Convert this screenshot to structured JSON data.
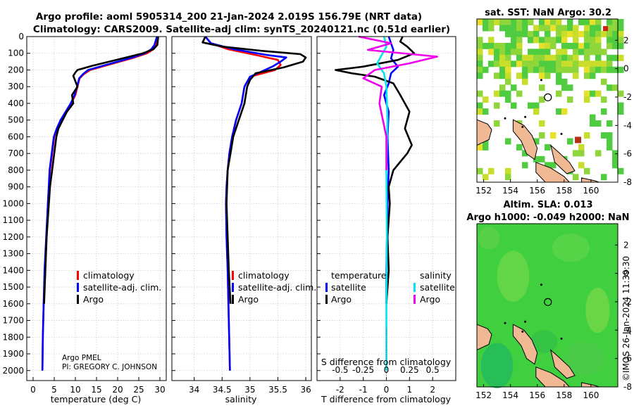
{
  "header": {
    "line1": "Argo profile: aoml 5905314_200 21-Jan-2024 2.019S 156.79E (NRT data)",
    "line2": "Climatology: CARS2009. Satellite-adj clim: synTS_20240121.nc (0.51d earlier)"
  },
  "colors": {
    "argo": "#000000",
    "climatology": "#ff0000",
    "satellite_adj": "#0000ff",
    "s_satellite": "#00e5ee",
    "s_argo": "#ee00ee"
  },
  "depth_axis": {
    "ticks": [
      0,
      100,
      200,
      300,
      400,
      500,
      600,
      700,
      800,
      900,
      1000,
      1100,
      1200,
      1300,
      1400,
      1500,
      1600,
      1700,
      1800,
      1900,
      2000
    ],
    "range": [
      0,
      2060
    ]
  },
  "chart_data": [
    {
      "type": "line",
      "name": "temperature-profile",
      "xlabel": "temperature (deg C)",
      "xlim": [
        -1.5,
        31.5
      ],
      "xticks": [
        0,
        5,
        10,
        15,
        20,
        25,
        30
      ],
      "ylim": [
        0,
        2060
      ],
      "legend": [
        "climatology",
        "satellite-adj. clim.",
        "Argo"
      ],
      "legend_position": "lower-right",
      "note_line1": "Argo PMEL",
      "note_line2": "PI: GREGORY C. JOHNSON",
      "series": [
        {
          "name": "climatology",
          "color": "#ff0000",
          "x": [
            29.5,
            29.3,
            29.0,
            28.5,
            27.0,
            24.0,
            20.5,
            17.0,
            13.5,
            12.0,
            11.0,
            10.5,
            10.0,
            9.0,
            7.8,
            6.5,
            5.7,
            5.0,
            4.5,
            4.0,
            3.5,
            3.2,
            2.8,
            2.5,
            2.3,
            2.2
          ],
          "y": [
            0,
            25,
            50,
            75,
            100,
            125,
            150,
            175,
            200,
            225,
            250,
            300,
            350,
            400,
            450,
            500,
            550,
            600,
            700,
            800,
            1000,
            1200,
            1400,
            1600,
            1800,
            2000
          ]
        },
        {
          "name": "satellite-adj. clim.",
          "color": "#0000ff",
          "x": [
            29.3,
            29.0,
            28.7,
            28.0,
            26.5,
            23.5,
            20.0,
            16.5,
            13.0,
            11.8,
            10.9,
            10.4,
            9.8,
            8.9,
            7.7,
            6.5,
            5.6,
            4.9,
            4.4,
            3.9,
            3.5,
            3.1,
            2.7,
            2.5,
            2.3,
            2.2
          ],
          "y": [
            0,
            25,
            50,
            75,
            100,
            125,
            150,
            175,
            200,
            225,
            250,
            300,
            350,
            400,
            450,
            500,
            550,
            600,
            700,
            800,
            1000,
            1200,
            1400,
            1600,
            1800,
            2000
          ]
        },
        {
          "name": "Argo",
          "color": "#000000",
          "x": [
            29.6,
            29.5,
            29.4,
            28.5,
            26.0,
            22.0,
            18.0,
            14.0,
            10.5,
            10.0,
            9.5,
            10.5,
            9.2,
            9.5,
            8.0,
            7.0,
            6.0,
            5.5,
            5.0,
            4.5,
            4.0,
            3.2,
            2.9,
            2.6
          ],
          "y": [
            0,
            25,
            50,
            75,
            100,
            125,
            150,
            175,
            200,
            215,
            235,
            300,
            350,
            400,
            450,
            500,
            550,
            600,
            700,
            800,
            900,
            1200,
            1400,
            1600
          ]
        }
      ]
    },
    {
      "type": "line",
      "name": "salinity-profile",
      "xlabel": "salinity",
      "xlim": [
        33.6,
        36.1
      ],
      "xticks": [
        34,
        34.5,
        35,
        35.5,
        36
      ],
      "ylim": [
        0,
        2060
      ],
      "legend": [
        "climatology",
        "satellite-adj. clim.",
        "Argo"
      ],
      "legend_position": "lower-right",
      "series": [
        {
          "name": "climatology",
          "color": "#ff0000",
          "x": [
            34.2,
            34.3,
            34.6,
            35.1,
            35.5,
            35.55,
            35.45,
            35.0,
            34.9,
            34.85,
            34.75,
            34.68,
            34.63,
            34.6,
            34.58,
            34.57,
            34.58,
            34.6,
            34.62,
            34.64
          ],
          "y": [
            0,
            40,
            75,
            110,
            140,
            170,
            200,
            240,
            300,
            400,
            500,
            600,
            700,
            800,
            900,
            1000,
            1200,
            1400,
            1700,
            2000
          ]
        },
        {
          "name": "satellite-adj. clim.",
          "color": "#0000ff",
          "x": [
            34.2,
            34.3,
            34.7,
            35.3,
            35.65,
            35.55,
            35.4,
            35.0,
            34.9,
            34.85,
            34.75,
            34.68,
            34.63,
            34.6,
            34.58,
            34.57,
            34.58,
            34.6,
            34.62,
            34.64
          ],
          "y": [
            0,
            40,
            75,
            110,
            125,
            150,
            180,
            240,
            300,
            400,
            500,
            600,
            700,
            800,
            900,
            1000,
            1200,
            1400,
            1700,
            2000
          ]
        },
        {
          "name": "Argo",
          "color": "#000000",
          "x": [
            34.2,
            34.15,
            34.5,
            35.2,
            35.9,
            36.0,
            35.95,
            35.6,
            35.1,
            35.0,
            34.95,
            34.9,
            34.8,
            34.7,
            34.65,
            34.6,
            34.58,
            34.6,
            34.62,
            34.65
          ],
          "y": [
            0,
            35,
            60,
            85,
            105,
            125,
            150,
            185,
            220,
            260,
            300,
            400,
            500,
            600,
            700,
            800,
            1000,
            1200,
            1400,
            1600
          ]
        }
      ]
    },
    {
      "type": "line",
      "name": "difference-profile",
      "xlabel": "T difference from climatology",
      "xlabel_top": "S difference from climatology",
      "xlim": [
        -3,
        3
      ],
      "xticks": [
        -2,
        -1,
        0,
        1,
        2
      ],
      "xticks_top": [
        -0.5,
        -0.25,
        0,
        0.25,
        0.5
      ],
      "ylim": [
        0,
        2060
      ],
      "legend_left_title": "temperature",
      "legend_right_title": "salinity",
      "legend_left": [
        "satellite",
        "Argo"
      ],
      "legend_right": [
        "satellite",
        "Argo"
      ],
      "series": [
        {
          "name": "T satellite",
          "color": "#0000ff",
          "x": [
            0.1,
            0.3,
            0.2,
            0.5,
            0.2,
            0.1,
            -0.1,
            0.1,
            0.05,
            0.1,
            0.05,
            0.0,
            0.0
          ],
          "y": [
            0,
            80,
            130,
            180,
            220,
            280,
            350,
            450,
            600,
            800,
            1000,
            1400,
            1600
          ]
        },
        {
          "name": "T Argo",
          "color": "#000000",
          "x": [
            0.7,
            0.6,
            0.9,
            1.2,
            0.5,
            -1.0,
            -2.2,
            -1.5,
            -0.5,
            0.3,
            0.6,
            1.0,
            0.8,
            1.1,
            0.9,
            0.6,
            0.3,
            0.1,
            0.15,
            0.05,
            0.1,
            0.0
          ],
          "y": [
            0,
            30,
            60,
            100,
            140,
            180,
            200,
            220,
            240,
            280,
            350,
            450,
            550,
            650,
            700,
            750,
            800,
            900,
            1000,
            1200,
            1400,
            1600
          ]
        },
        {
          "name": "S satellite",
          "color": "#00e5ee",
          "x": [
            -0.1,
            0.0,
            -0.2,
            -0.4,
            -0.1,
            0.0,
            0.05,
            0.0,
            0.02,
            0.0,
            0.0
          ],
          "y": [
            0,
            60,
            110,
            160,
            220,
            300,
            500,
            800,
            1200,
            1600,
            2000
          ]
        },
        {
          "name": "S Argo",
          "color": "#ee00ee",
          "x": [
            -1.2,
            0.2,
            -0.8,
            2.2,
            1.0,
            -0.5,
            -1.0,
            -0.2,
            -0.3,
            0.0,
            0.0
          ],
          "y": [
            0,
            40,
            80,
            120,
            160,
            200,
            250,
            300,
            400,
            600,
            800
          ]
        }
      ]
    },
    {
      "type": "heatmap",
      "name": "sat-sst-map",
      "title": "sat. SST: NaN Argo: 30.2",
      "x_range": [
        151.5,
        162
      ],
      "y_range": [
        -8,
        3.5
      ],
      "xticks": [
        152,
        154,
        156,
        158,
        160
      ],
      "yticks": [
        2,
        0,
        -2,
        -4,
        -6,
        -8
      ],
      "marker": {
        "lon": 156.79,
        "lat": -2.019
      }
    },
    {
      "type": "heatmap",
      "name": "altim-sla-map",
      "title": "Altim. SLA: 0.013",
      "subtitle": "Argo h1000: -0.049 h2000: NaN",
      "x_range": [
        151.5,
        162
      ],
      "y_range": [
        -8,
        3.5
      ],
      "xticks": [
        152,
        154,
        156,
        158,
        160
      ],
      "yticks": [
        2,
        0,
        -2,
        -4,
        -6,
        -8
      ],
      "marker": {
        "lon": 156.79,
        "lat": -2.019
      }
    }
  ],
  "footer": {
    "stamp": "©IMOS 26-Jan-2024 11:39:30"
  }
}
